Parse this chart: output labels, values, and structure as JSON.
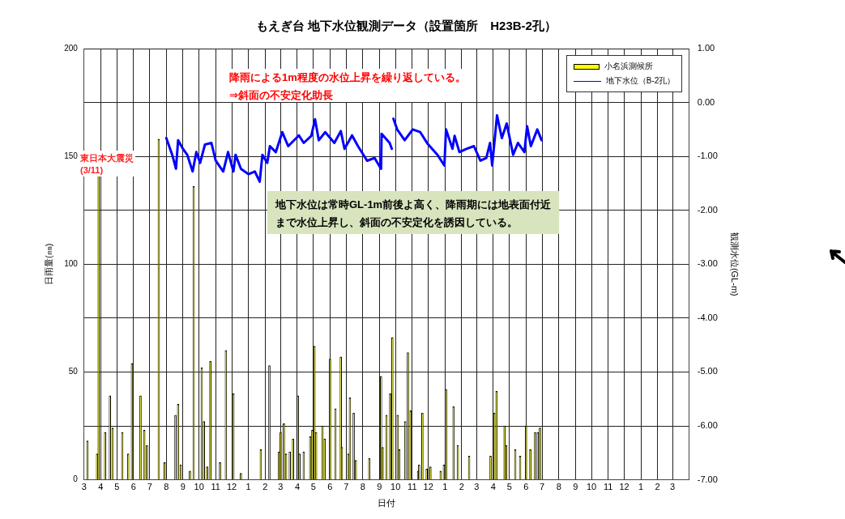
{
  "chart_data": {
    "type": "bar",
    "title": "もえぎ台 地下水位観測データ（設置箇所　H23B-2孔）",
    "xlabel": "日付",
    "ylabel": "日雨量(㎜)",
    "y2label": "観測水位(GL-m)",
    "annotations": [
      "降雨による1m程度の水位上昇を繰り返している。\n⇒斜面の不安定化助長",
      "東日本大震災\n(3/11)",
      "地下水位は常時GL-1m前後よ高く、降雨期には地表面付近まで水位上昇し、斜面の不安定化を誘因している。"
    ],
    "series": [
      {
        "name": "小名浜測候所",
        "color": "#ffff00",
        "x": [
          "2011-03-07",
          "2011-03-25",
          "2011-03-28",
          "2011-04-09",
          "2011-04-18",
          "2011-04-23",
          "2011-05-11",
          "2011-05-22",
          "2011-05-29",
          "2011-06-14",
          "2011-06-21",
          "2011-06-26",
          "2011-07-18",
          "2011-07-29",
          "2011-08-18",
          "2011-08-23",
          "2011-08-28",
          "2011-09-14",
          "2011-09-21",
          "2011-10-06",
          "2011-10-10",
          "2011-10-16",
          "2011-10-22",
          "2011-11-09",
          "2011-11-20",
          "2011-12-04",
          "2011-12-18",
          "2012-01-24",
          "2012-02-09",
          "2012-02-27",
          "2012-03-01",
          "2012-03-07",
          "2012-03-11",
          "2012-03-18",
          "2012-03-24",
          "2012-04-02",
          "2012-04-05",
          "2012-04-13",
          "2012-04-25",
          "2012-04-29",
          "2012-05-03",
          "2012-05-06",
          "2012-05-18",
          "2012-05-22",
          "2012-06-01",
          "2012-06-11",
          "2012-06-21",
          "2012-06-23",
          "2012-07-05",
          "2012-07-08",
          "2012-07-15",
          "2012-07-19",
          "2012-08-13",
          "2012-09-04",
          "2012-09-07",
          "2012-09-14",
          "2012-09-21",
          "2012-09-25",
          "2012-10-05",
          "2012-10-08",
          "2012-10-19",
          "2012-10-24",
          "2012-10-29",
          "2012-11-12",
          "2012-11-14",
          "2012-11-20",
          "2012-11-28",
          "2012-12-05",
          "2012-12-24",
          "2012-12-30",
          "2013-01-03",
          "2013-01-17",
          "2013-01-25",
          "2013-02-15",
          "2013-03-27",
          "2013-04-03",
          "2013-04-07",
          "2013-04-22",
          "2013-04-25",
          "2013-05-12",
          "2013-05-21",
          "2013-06-01",
          "2013-06-09",
          "2013-06-18",
          "2013-06-23",
          "2013-06-27"
        ],
        "values": [
          18,
          12,
          141,
          22,
          39,
          24,
          22,
          12,
          54,
          39,
          23,
          16,
          158,
          8,
          30,
          35,
          7,
          4,
          136,
          52,
          27,
          6,
          55,
          8,
          60,
          40,
          3,
          14,
          53,
          13,
          22,
          26,
          12,
          13,
          19,
          39,
          12,
          13,
          20,
          23,
          62,
          22,
          25,
          19,
          56,
          33,
          57,
          15,
          12,
          38,
          31,
          9,
          10,
          48,
          15,
          30,
          40,
          66,
          30,
          14,
          27,
          59,
          32,
          4,
          7,
          31,
          5,
          6,
          4,
          7,
          42,
          34,
          16,
          11,
          11,
          31,
          41,
          25,
          16,
          14,
          11,
          25,
          14,
          22,
          22,
          24
        ]
      },
      {
        "name": "地下水位（B-2孔）",
        "type": "line",
        "axis": "y2",
        "color": "#0000ff",
        "x": [
          "2011-08-01",
          "2011-08-12",
          "2011-08-19",
          "2011-08-23",
          "2011-09-01",
          "2011-09-09",
          "2011-09-19",
          "2011-09-26",
          "2011-10-03",
          "2011-10-12",
          "2011-10-24",
          "2011-11-01",
          "2011-11-15",
          "2011-11-24",
          "2011-12-04",
          "2011-12-08",
          "2011-12-18",
          "2012-01-01",
          "2012-01-13",
          "2012-01-22",
          "2012-01-27",
          "2012-02-05",
          "2012-02-10",
          "2012-02-21",
          "2012-03-04",
          "2012-03-15",
          "2012-04-04",
          "2012-04-13",
          "2012-04-27",
          "2012-05-04",
          "2012-05-11",
          "2012-05-23",
          "2012-06-09",
          "2012-06-21",
          "2012-06-28",
          "2012-07-12",
          "2012-07-23",
          "2012-08-09",
          "2012-08-23",
          "2012-09-04",
          "2012-09-05",
          "2012-09-20",
          "2012-09-24",
          "2012-09-26",
          "2012-09-27",
          "2012-10-04",
          "2012-10-18",
          "2012-11-02",
          "2012-11-16",
          "2012-11-30",
          "2012-12-18",
          "2012-12-31",
          "2013-01-03",
          "2013-01-15",
          "2013-01-19",
          "2013-01-28",
          "2013-02-10",
          "2013-02-24",
          "2013-03-08",
          "2013-03-19",
          "2013-03-26",
          "2013-03-30",
          "2013-04-08",
          "2013-04-17",
          "2013-04-26",
          "2013-05-08",
          "2013-05-17",
          "2013-05-29",
          "2013-06-03",
          "2013-06-10",
          "2013-06-22",
          "2013-06-30"
        ],
        "values": [
          -0.66,
          -0.97,
          -1.23,
          -0.7,
          -0.86,
          -0.97,
          -1.28,
          -0.92,
          -1.12,
          -0.78,
          -0.75,
          -1.08,
          -1.28,
          -0.92,
          -1.28,
          -0.97,
          -1.23,
          -1.33,
          -1.28,
          -1.47,
          -0.97,
          -1.12,
          -0.81,
          -0.92,
          -0.55,
          -0.81,
          -0.61,
          -0.75,
          -0.62,
          -0.31,
          -0.7,
          -0.55,
          -0.75,
          -0.53,
          -0.86,
          -0.61,
          -0.81,
          -1.08,
          -1.03,
          -1.23,
          -0.58,
          -0.75,
          -0.86,
          null,
          -0.3,
          -0.5,
          -0.7,
          -0.5,
          -0.55,
          -0.77,
          -0.97,
          -1.17,
          -0.5,
          -0.86,
          -0.62,
          -0.92,
          -0.86,
          -0.81,
          -1.08,
          -1.03,
          -0.75,
          -1.17,
          -0.24,
          -0.66,
          -0.39,
          -0.97,
          -0.75,
          -0.92,
          -0.44,
          -0.81,
          -0.5,
          -0.7
        ]
      }
    ],
    "xlim": [
      "2011-03",
      "2014-04"
    ],
    "xticks": [
      {
        "value": "2011-03",
        "label": "3"
      },
      {
        "value": "2011-04",
        "label": "4"
      },
      {
        "value": "2011-05",
        "label": "5"
      },
      {
        "value": "2011-06",
        "label": "6"
      },
      {
        "value": "2011-07",
        "label": "7"
      },
      {
        "value": "2011-08",
        "label": "8"
      },
      {
        "value": "2011-09",
        "label": "9"
      },
      {
        "value": "2011-10",
        "label": "10"
      },
      {
        "value": "2011-11",
        "label": "11"
      },
      {
        "value": "2011-12",
        "label": "12"
      },
      {
        "value": "2012-01",
        "label": "1"
      },
      {
        "value": "2012-02",
        "label": "2"
      },
      {
        "value": "2012-03",
        "label": "3"
      },
      {
        "value": "2012-04",
        "label": "4"
      },
      {
        "value": "2012-05",
        "label": "5"
      },
      {
        "value": "2012-06",
        "label": "6"
      },
      {
        "value": "2012-07",
        "label": "7"
      },
      {
        "value": "2012-08",
        "label": "8"
      },
      {
        "value": "2012-09",
        "label": "9"
      },
      {
        "value": "2012-10",
        "label": "10"
      },
      {
        "value": "2012-11",
        "label": "11"
      },
      {
        "value": "2012-12",
        "label": "12"
      },
      {
        "value": "2013-01",
        "label": "1"
      },
      {
        "value": "2013-02",
        "label": "2"
      },
      {
        "value": "2013-03",
        "label": "3"
      },
      {
        "value": "2013-04",
        "label": "4"
      },
      {
        "value": "2013-05",
        "label": "5"
      },
      {
        "value": "2013-06",
        "label": "6"
      },
      {
        "value": "2013-07",
        "label": "7"
      },
      {
        "value": "2013-08",
        "label": "8"
      },
      {
        "value": "2013-09",
        "label": "9"
      },
      {
        "value": "2013-10",
        "label": "10"
      },
      {
        "value": "2013-11",
        "label": "11"
      },
      {
        "value": "2013-12",
        "label": "12"
      },
      {
        "value": "2014-01",
        "label": "1"
      },
      {
        "value": "2014-02",
        "label": "2"
      },
      {
        "value": "2014-03",
        "label": "3"
      }
    ],
    "ylim": [
      0,
      200
    ],
    "yticks": [
      0,
      {
        "value": 25,
        "label": null
      },
      50,
      {
        "value": 75,
        "label": null
      },
      100,
      {
        "value": 125,
        "label": null
      },
      150,
      {
        "value": 175,
        "label": null
      },
      200
    ],
    "y2lim": [
      -7,
      1
    ],
    "y2ticks": [
      {
        "value": -7,
        "label": "-7.00"
      },
      {
        "value": -6,
        "label": "-6.00"
      },
      {
        "value": -5,
        "label": "-5.00"
      },
      {
        "value": -4,
        "label": "-4.00"
      },
      {
        "value": -3,
        "label": "-3.00"
      },
      {
        "value": -2,
        "label": "-2.00"
      },
      {
        "value": -1,
        "label": "-1.00"
      },
      {
        "value": 0,
        "label": "0.00"
      },
      {
        "value": 1,
        "label": "1.00"
      }
    ],
    "grid": true,
    "legend": "top right",
    "line_style": "solid"
  }
}
